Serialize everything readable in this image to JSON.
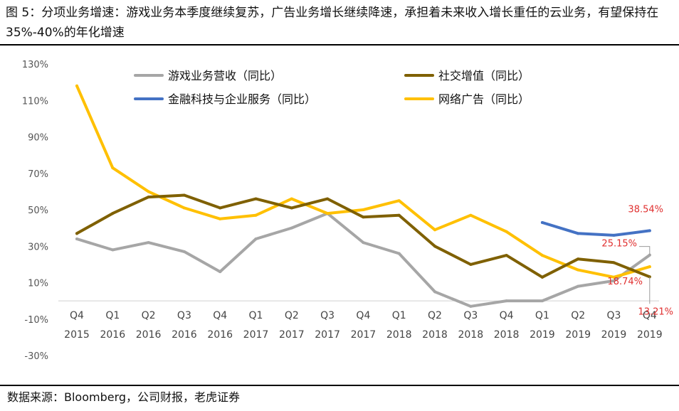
{
  "figure": {
    "caption": "图 5：分项业务增速：游戏业务本季度继续复苏，广告业务增长继续降速，承担着未来收入增长重任的云业务，有望保持在 35%-40%的年化增速",
    "source": "数据来源：Bloomberg，公司财报，老虎证券"
  },
  "chart_data": {
    "type": "line",
    "title": "",
    "xlabel": "",
    "ylabel": "",
    "ylim": [
      -30,
      130
    ],
    "ytick_values": [
      -30,
      -10,
      10,
      30,
      50,
      70,
      90,
      110,
      130
    ],
    "yticks": [
      "-30%",
      "-10%",
      "10%",
      "30%",
      "50%",
      "70%",
      "90%",
      "110%",
      "130%"
    ],
    "categories": [
      [
        "Q4",
        "2015"
      ],
      [
        "Q1",
        "2016"
      ],
      [
        "Q2",
        "2016"
      ],
      [
        "Q3",
        "2016"
      ],
      [
        "Q4",
        "2016"
      ],
      [
        "Q1",
        "2017"
      ],
      [
        "Q2",
        "2017"
      ],
      [
        "Q3",
        "2017"
      ],
      [
        "Q4",
        "2017"
      ],
      [
        "Q1",
        "2018"
      ],
      [
        "Q2",
        "2018"
      ],
      [
        "Q3",
        "2018"
      ],
      [
        "Q4",
        "2018"
      ],
      [
        "Q1",
        "2019"
      ],
      [
        "Q2",
        "2019"
      ],
      [
        "Q3",
        "2019"
      ],
      [
        "Q4",
        "2019"
      ]
    ],
    "series": [
      {
        "name": "游戏业务营收（同比）",
        "color": "#a6a6a6",
        "values": [
          34,
          28,
          32,
          27,
          16,
          34,
          40,
          48,
          32,
          26,
          5,
          -3,
          0,
          0,
          8,
          11,
          25.15
        ]
      },
      {
        "name": "社交增值（同比）",
        "color": "#7f6000",
        "values": [
          37,
          48,
          57,
          58,
          51,
          56,
          51,
          56,
          46,
          47,
          30,
          20,
          25,
          13,
          23,
          21,
          13.21
        ]
      },
      {
        "name": "金融科技与企业服务（同比）",
        "color": "#4472c4",
        "values": [
          null,
          null,
          null,
          null,
          null,
          null,
          null,
          null,
          null,
          null,
          null,
          null,
          null,
          43,
          37,
          36,
          38.54
        ]
      },
      {
        "name": "网络广告（同比）",
        "color": "#ffc000",
        "values": [
          118,
          73,
          60,
          51,
          45,
          47,
          56,
          48,
          50,
          55,
          39,
          47,
          38,
          25,
          17,
          13,
          18.74
        ]
      }
    ],
    "annotations": [
      "38.54%",
      "25.15%",
      "18.74%",
      "13.21%"
    ],
    "annotation_color": "#e03030",
    "legend_position": "top"
  }
}
